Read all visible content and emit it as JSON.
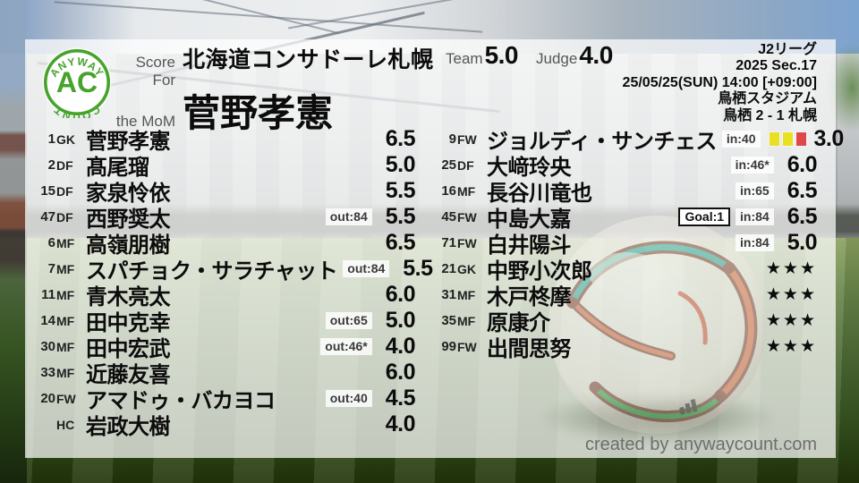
{
  "logo": {
    "arc_top": "ANYWAY",
    "center": "AC",
    "arc_bottom": "COUNT"
  },
  "header": {
    "score_for_label": "Score For",
    "team_name": "北海道コンサドーレ札幌",
    "mom_label": "the MoM",
    "mom_name": "菅野孝憲",
    "team_label": "Team",
    "team_score": "5.0",
    "judge_label": "Judge",
    "judge_score": "4.0",
    "league": "J2リーグ",
    "season": "2025 Sec.17",
    "datetime": "25/05/25(SUN) 14:00 [+09:00]",
    "stadium": "鳥栖スタジアム",
    "result": "鳥栖 2 - 1 札幌"
  },
  "players": {
    "left": [
      {
        "num": "1",
        "pos": "GK",
        "name": "菅野孝憲",
        "rating": "6.5"
      },
      {
        "num": "2",
        "pos": "DF",
        "name": "髙尾瑠",
        "rating": "5.0"
      },
      {
        "num": "15",
        "pos": "DF",
        "name": "家泉怜依",
        "rating": "5.5"
      },
      {
        "num": "47",
        "pos": "DF",
        "name": "西野奨太",
        "sub": "out:84",
        "rating": "5.5"
      },
      {
        "num": "6",
        "pos": "MF",
        "name": "高嶺朋樹",
        "rating": "6.5"
      },
      {
        "num": "7",
        "pos": "MF",
        "name": "スパチョク・サラチャット",
        "sub": "out:84",
        "rating": "5.5"
      },
      {
        "num": "11",
        "pos": "MF",
        "name": "青木亮太",
        "rating": "6.0"
      },
      {
        "num": "14",
        "pos": "MF",
        "name": "田中克幸",
        "sub": "out:65",
        "rating": "5.0"
      },
      {
        "num": "30",
        "pos": "MF",
        "name": "田中宏武",
        "sub": "out:46*",
        "rating": "4.0"
      },
      {
        "num": "33",
        "pos": "MF",
        "name": "近藤友喜",
        "rating": "6.0"
      },
      {
        "num": "20",
        "pos": "FW",
        "name": "アマドゥ・バカヨコ",
        "sub": "out:40",
        "rating": "4.5"
      },
      {
        "num": "",
        "pos": "HC",
        "name": "岩政大樹",
        "rating": "4.0"
      }
    ],
    "right": [
      {
        "num": "9",
        "pos": "FW",
        "name": "ジョルディ・サンチェス",
        "sub": "in:40",
        "cards": [
          "yellow",
          "yellow",
          "red"
        ],
        "rating": "3.0"
      },
      {
        "num": "25",
        "pos": "DF",
        "name": "大﨑玲央",
        "sub": "in:46*",
        "rating": "6.0"
      },
      {
        "num": "16",
        "pos": "MF",
        "name": "長谷川竜也",
        "sub": "in:65",
        "rating": "6.5"
      },
      {
        "num": "45",
        "pos": "FW",
        "name": "中島大嘉",
        "goal": "Goal:1",
        "sub": "in:84",
        "rating": "6.5"
      },
      {
        "num": "71",
        "pos": "FW",
        "name": "白井陽斗",
        "sub": "in:84",
        "rating": "5.0"
      },
      {
        "num": "21",
        "pos": "GK",
        "name": "中野小次郎",
        "rating": "★★★"
      },
      {
        "num": "31",
        "pos": "MF",
        "name": "木戸柊摩",
        "rating": "★★★"
      },
      {
        "num": "35",
        "pos": "MF",
        "name": "原康介",
        "rating": "★★★"
      },
      {
        "num": "99",
        "pos": "FW",
        "name": "出間思努",
        "rating": "★★★"
      }
    ]
  },
  "footer": {
    "credit": "created by anywaycount.com"
  },
  "colors": {
    "logo_green": "#47a32c",
    "yellow_card": "#e8e020",
    "red_card": "#e04848"
  }
}
